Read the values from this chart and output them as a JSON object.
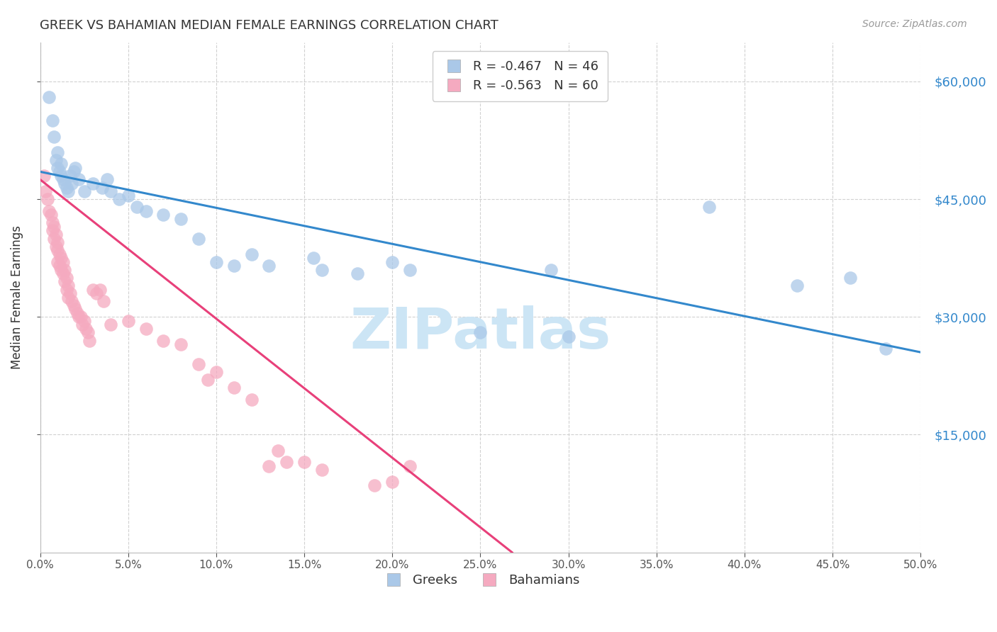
{
  "title": "GREEK VS BAHAMIAN MEDIAN FEMALE EARNINGS CORRELATION CHART",
  "source": "Source: ZipAtlas.com",
  "ylabel": "Median Female Earnings",
  "yaxis_values": [
    60000,
    45000,
    30000,
    15000
  ],
  "ylim": [
    0,
    65000
  ],
  "xlim": [
    0.0,
    0.5
  ],
  "background_color": "#ffffff",
  "greek_color": "#aac8e8",
  "bahamian_color": "#f5aac0",
  "greek_line_color": "#3388cc",
  "bahamian_line_color": "#e8407a",
  "legend_greek_label": "R = -0.467   N = 46",
  "legend_bahamian_label": "R = -0.563   N = 60",
  "legend_bottom_greek": "Greeks",
  "legend_bottom_bahamian": "Bahamians",
  "watermark": "ZIPatlas",
  "watermark_color": "#cce5f5",
  "greek_line_x0": 0.0,
  "greek_line_y0": 48500,
  "greek_line_x1": 0.5,
  "greek_line_y1": 25500,
  "bahamian_line_x0": 0.0,
  "bahamian_line_y0": 47500,
  "bahamian_line_x1": 0.268,
  "bahamian_line_y1": 0,
  "greek_x": [
    0.005,
    0.007,
    0.008,
    0.009,
    0.01,
    0.01,
    0.011,
    0.012,
    0.012,
    0.013,
    0.014,
    0.015,
    0.016,
    0.017,
    0.018,
    0.019,
    0.02,
    0.022,
    0.025,
    0.03,
    0.035,
    0.038,
    0.04,
    0.045,
    0.05,
    0.055,
    0.06,
    0.07,
    0.08,
    0.09,
    0.1,
    0.11,
    0.12,
    0.13,
    0.155,
    0.16,
    0.18,
    0.2,
    0.21,
    0.25,
    0.29,
    0.3,
    0.38,
    0.43,
    0.46,
    0.48
  ],
  "greek_y": [
    58000,
    55000,
    53000,
    50000,
    49000,
    51000,
    48500,
    48000,
    49500,
    47500,
    47000,
    46500,
    46000,
    48000,
    47000,
    48500,
    49000,
    47500,
    46000,
    47000,
    46500,
    47500,
    46000,
    45000,
    45500,
    44000,
    43500,
    43000,
    42500,
    40000,
    37000,
    36500,
    38000,
    36500,
    37500,
    36000,
    35500,
    37000,
    36000,
    28000,
    36000,
    27500,
    44000,
    34000,
    35000,
    26000
  ],
  "bahamian_x": [
    0.002,
    0.003,
    0.004,
    0.005,
    0.006,
    0.007,
    0.007,
    0.008,
    0.008,
    0.009,
    0.009,
    0.01,
    0.01,
    0.01,
    0.011,
    0.011,
    0.012,
    0.012,
    0.013,
    0.013,
    0.014,
    0.014,
    0.015,
    0.015,
    0.016,
    0.016,
    0.017,
    0.018,
    0.019,
    0.02,
    0.021,
    0.022,
    0.023,
    0.024,
    0.025,
    0.026,
    0.027,
    0.028,
    0.03,
    0.032,
    0.034,
    0.036,
    0.04,
    0.05,
    0.06,
    0.07,
    0.08,
    0.09,
    0.095,
    0.1,
    0.11,
    0.12,
    0.13,
    0.135,
    0.14,
    0.15,
    0.16,
    0.19,
    0.2,
    0.21
  ],
  "bahamian_y": [
    48000,
    46000,
    45000,
    43500,
    43000,
    42000,
    41000,
    41500,
    40000,
    39000,
    40500,
    39500,
    38500,
    37000,
    38000,
    36500,
    37500,
    36000,
    35500,
    37000,
    36000,
    34500,
    35000,
    33500,
    34000,
    32500,
    33000,
    32000,
    31500,
    31000,
    30500,
    30000,
    30000,
    29000,
    29500,
    28500,
    28000,
    27000,
    33500,
    33000,
    33500,
    32000,
    29000,
    29500,
    28500,
    27000,
    26500,
    24000,
    22000,
    23000,
    21000,
    19500,
    11000,
    13000,
    11500,
    11500,
    10500,
    8500,
    9000,
    11000
  ]
}
